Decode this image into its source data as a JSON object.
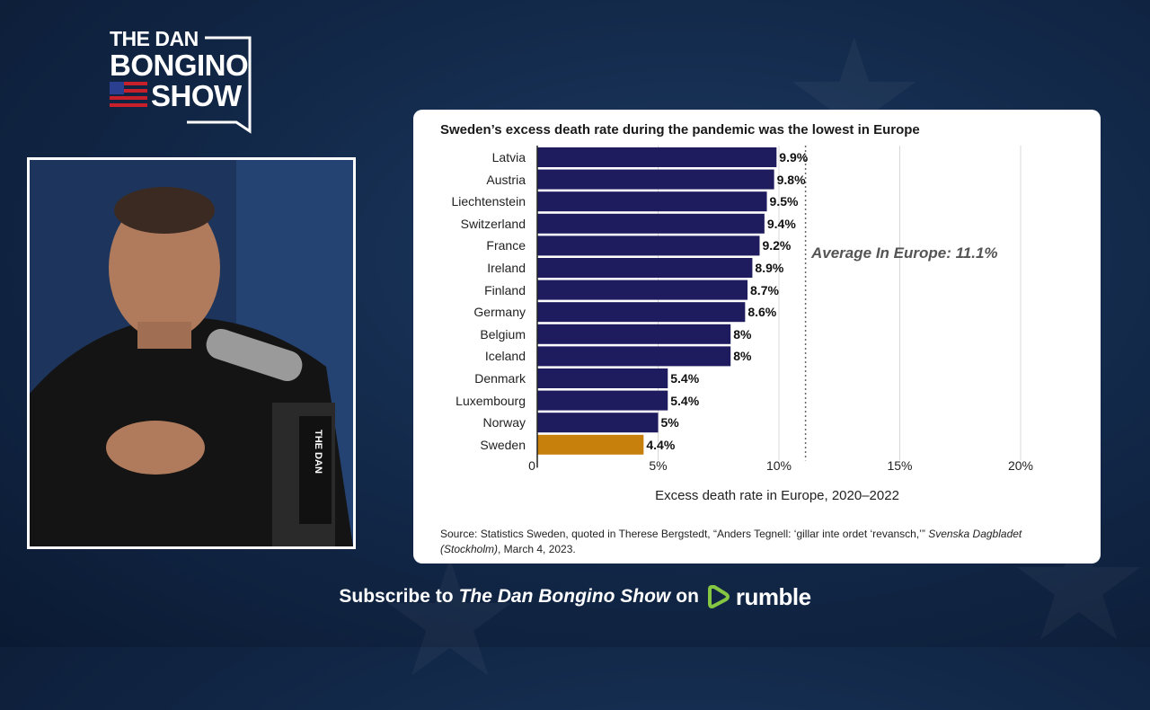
{
  "logo": {
    "line1": "THE DAN",
    "line2": "BONGINO",
    "line3": "SHOW"
  },
  "chart_data": {
    "type": "bar",
    "orientation": "horizontal",
    "title": "Sweden’s excess death rate during the pandemic was the lowest in Europe",
    "categories": [
      "Latvia",
      "Austria",
      "Liechtenstein",
      "Switzerland",
      "France",
      "Ireland",
      "Finland",
      "Germany",
      "Belgium",
      "Iceland",
      "Denmark",
      "Luxembourg",
      "Norway",
      "Sweden"
    ],
    "values": [
      9.9,
      9.8,
      9.5,
      9.4,
      9.2,
      8.9,
      8.7,
      8.6,
      8.0,
      8.0,
      5.4,
      5.4,
      5.0,
      4.4
    ],
    "value_labels": [
      "9.9%",
      "9.8%",
      "9.5%",
      "9.4%",
      "9.2%",
      "8.9%",
      "8.7%",
      "8.6%",
      "8%",
      "8%",
      "5.4%",
      "5.4%",
      "5%",
      "4.4%"
    ],
    "xlim": [
      0,
      20
    ],
    "xticks": [
      0,
      5,
      10,
      15,
      20
    ],
    "xtick_labels": [
      "0",
      "5%",
      "10%",
      "15%",
      "20%"
    ],
    "xlabel": "Excess death rate in Europe, 2020–2022",
    "ylabel": "",
    "grid": true,
    "bar_color": "#1e1b5e",
    "highlight": {
      "category": "Sweden",
      "color": "#c8800d"
    },
    "reference_line": {
      "value": 11.1,
      "label": "Average In Europe: 11.1%"
    }
  },
  "source": {
    "text": "Source: Statistics Sweden, quoted in Therese Bergstedt, “Anders Tegnell: ‘gillar inte ordet ‘revansch,’” ",
    "italic": "Svenska Dagbladet (Stockholm)",
    "tail": ", March 4, 2023."
  },
  "footer": {
    "prefix": "Subscribe to",
    "show": "The Dan Bongino Show",
    "on": "on",
    "platform": "rumble"
  },
  "colors": {
    "rumble_green": "#85c742"
  }
}
